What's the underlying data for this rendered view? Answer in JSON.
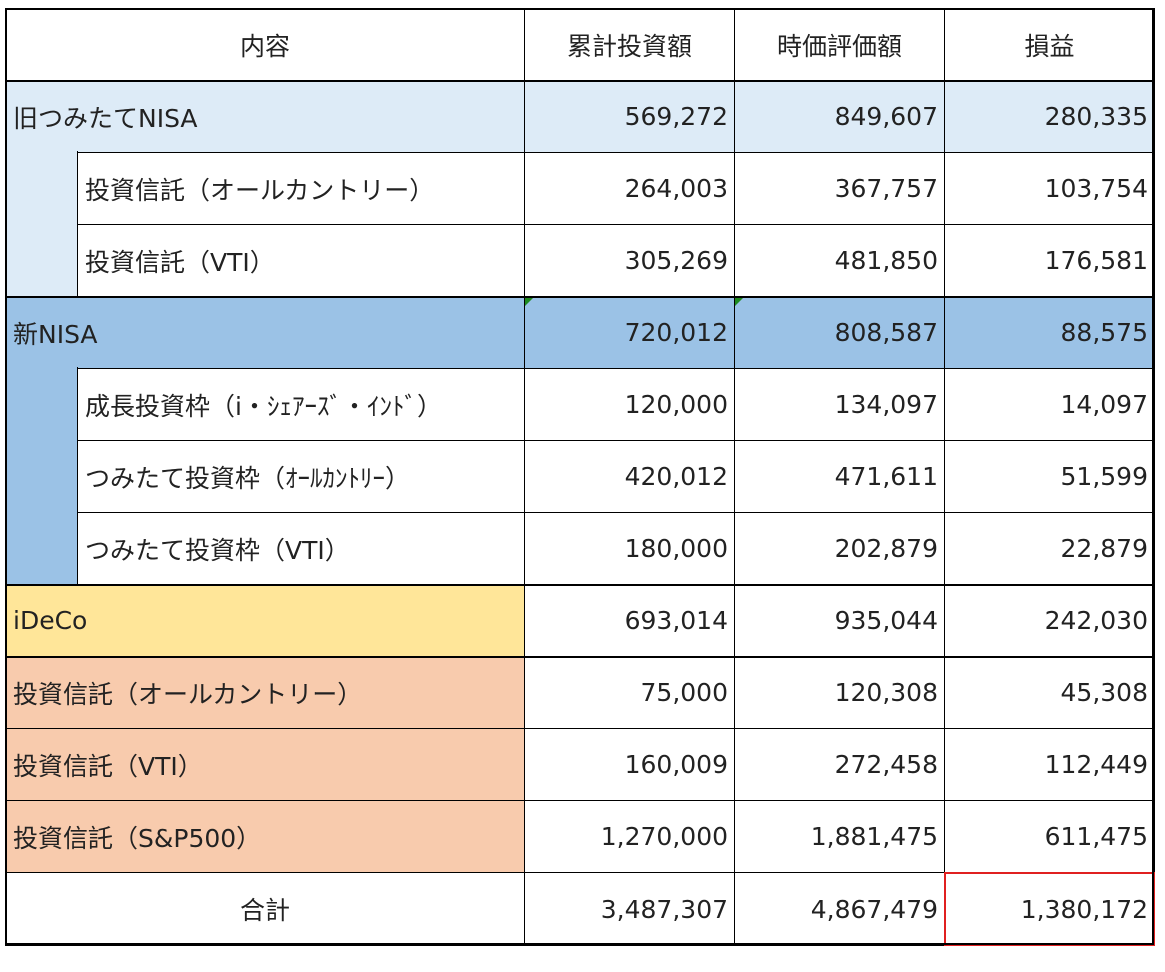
{
  "colors": {
    "header": "#ffffff",
    "old_nisa": "#DDEBF7",
    "new_nisa": "#9BC2E6",
    "ideco": "#FFE699",
    "ideco_sub": "#F8CBAD",
    "total_highlight": "#e02020"
  },
  "headers": [
    "内容",
    "累計投資額",
    "時価評価額",
    "損益"
  ],
  "rows": [
    {
      "label": "旧つみたてNISA",
      "values": [
        "569,272",
        "849,607",
        "280,335"
      ],
      "level": 0,
      "group": "old_nisa"
    },
    {
      "label": "投資信託（オールカントリー）",
      "values": [
        "264,003",
        "367,757",
        "103,754"
      ],
      "level": 1,
      "group": "old_nisa"
    },
    {
      "label": "投資信託（VTI）",
      "values": [
        "305,269",
        "481,850",
        "176,581"
      ],
      "level": 1,
      "group": "old_nisa"
    },
    {
      "label": "新NISA",
      "values": [
        "720,012",
        "808,587",
        "88,575"
      ],
      "level": 0,
      "group": "new_nisa",
      "flag": true
    },
    {
      "label": "成長投資枠（i・ｼｪｱｰｽﾞ・ｲﾝﾄﾞ）",
      "values": [
        "120,000",
        "134,097",
        "14,097"
      ],
      "level": 1,
      "group": "new_nisa"
    },
    {
      "label": "つみたて投資枠（ｵｰﾙｶﾝﾄﾘｰ）",
      "values": [
        "420,012",
        "471,611",
        "51,599"
      ],
      "level": 1,
      "group": "new_nisa"
    },
    {
      "label": "つみたて投資枠（VTI）",
      "values": [
        "180,000",
        "202,879",
        "22,879"
      ],
      "level": 1,
      "group": "new_nisa"
    },
    {
      "label": "iDeCo",
      "values": [
        "693,014",
        "935,044",
        "242,030"
      ],
      "level": 0,
      "group": "ideco",
      "numwhite": true
    },
    {
      "label": "投資信託（オールカントリー）",
      "values": [
        "75,000",
        "120,308",
        "45,308"
      ],
      "level": 0,
      "group": "ideco_sub",
      "numwhite": true
    },
    {
      "label": "投資信託（VTI）",
      "values": [
        "160,009",
        "272,458",
        "112,449"
      ],
      "level": 0,
      "group": "ideco_sub",
      "numwhite": true
    },
    {
      "label": "投資信託（S&P500）",
      "values": [
        "1,270,000",
        "1,881,475",
        "611,475"
      ],
      "level": 0,
      "group": "ideco_sub",
      "numwhite": true
    }
  ],
  "total": {
    "label": "合計",
    "values": [
      "3,487,307",
      "4,867,479",
      "1,380,172"
    ]
  }
}
